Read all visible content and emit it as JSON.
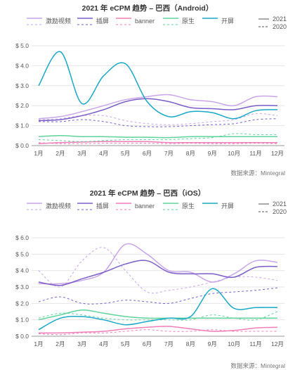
{
  "source_text": "数据来源：Mintegral",
  "chart_data": [
    {
      "type": "line",
      "title": "2021 年 eCPM 趋势 – 巴西（Android）",
      "xlabel": "",
      "ylabel": "",
      "categories": [
        "1月",
        "2月",
        "3月",
        "4月",
        "5月",
        "6月",
        "7月",
        "8月",
        "9月",
        "10月",
        "11月",
        "12月"
      ],
      "yticks": [
        "$ 0.0",
        "$ 1.0",
        "$ 2.0",
        "$ 3.0",
        "$ 4.0",
        "$ 5.0"
      ],
      "ylim": [
        0,
        5
      ],
      "grid": true,
      "legend_position": "top",
      "year_legend": [
        "2021",
        "2020"
      ],
      "series": [
        {
          "name": "激励视频",
          "color": "#c9a6e8",
          "year": "2021",
          "values": [
            1.35,
            1.45,
            1.7,
            2.0,
            2.3,
            2.45,
            2.55,
            2.3,
            2.2,
            2.0,
            2.45,
            2.45
          ]
        },
        {
          "name": "激励视频",
          "color": "#c9a6e8",
          "year": "2020",
          "values": [
            1.3,
            1.35,
            1.5,
            1.5,
            1.25,
            1.1,
            1.05,
            1.1,
            1.2,
            1.3,
            1.6,
            1.5
          ]
        },
        {
          "name": "插屏",
          "color": "#7b5fc7",
          "year": "2021",
          "values": [
            1.25,
            1.3,
            1.5,
            1.8,
            2.2,
            2.35,
            2.2,
            1.9,
            1.85,
            1.8,
            2.0,
            2.0
          ]
        },
        {
          "name": "插屏",
          "color": "#7b5fc7",
          "year": "2020",
          "values": [
            1.2,
            1.2,
            1.3,
            1.2,
            1.0,
            0.95,
            0.95,
            1.0,
            1.05,
            1.1,
            1.3,
            1.35
          ]
        },
        {
          "name": "banner",
          "color": "#ef7fb8",
          "year": "2021",
          "values": [
            0.1,
            0.15,
            0.18,
            0.2,
            0.2,
            0.2,
            0.15,
            0.15,
            0.15,
            0.15,
            0.15,
            0.15
          ]
        },
        {
          "name": "banner",
          "color": "#ef7fb8",
          "year": "2020",
          "values": [
            0.15,
            0.1,
            0.1,
            0.12,
            0.12,
            0.12,
            0.1,
            0.12,
            0.1,
            0.1,
            0.12,
            0.1
          ]
        },
        {
          "name": "原生",
          "color": "#5fd39b",
          "year": "2021",
          "values": [
            0.45,
            0.5,
            0.45,
            0.45,
            0.42,
            0.42,
            0.4,
            0.45,
            0.45,
            0.45,
            0.45,
            0.45
          ]
        },
        {
          "name": "原生",
          "color": "#5fd39b",
          "year": "2020",
          "values": [
            0.3,
            0.25,
            0.2,
            0.25,
            0.3,
            0.3,
            0.3,
            0.35,
            0.4,
            0.6,
            0.55,
            0.55
          ]
        },
        {
          "name": "开屏",
          "color": "#19a8c6",
          "year": "2021",
          "values": [
            3.0,
            4.7,
            2.1,
            3.5,
            4.1,
            2.2,
            1.45,
            1.7,
            1.65,
            1.35,
            1.75,
            1.8
          ]
        }
      ]
    },
    {
      "type": "line",
      "title": "2021 年 eCPM 趋势 – 巴西（iOS）",
      "xlabel": "",
      "ylabel": "",
      "categories": [
        "1月",
        "2月",
        "3月",
        "4月",
        "5月",
        "6月",
        "7月",
        "8月",
        "9月",
        "10月",
        "11月",
        "12月"
      ],
      "yticks": [
        "$ 0.0",
        "$ 1.0",
        "$ 2.0",
        "$ 3.0",
        "$ 4.0",
        "$ 5.0",
        "$ 6.0"
      ],
      "ylim": [
        0,
        6
      ],
      "grid": true,
      "legend_position": "top",
      "year_legend": [
        "2021",
        "2020"
      ],
      "series": [
        {
          "name": "激励视频",
          "color": "#c9a6e8",
          "year": "2021",
          "values": [
            3.2,
            3.2,
            3.4,
            3.9,
            5.6,
            5.0,
            4.0,
            3.9,
            3.3,
            3.8,
            4.6,
            4.5
          ]
        },
        {
          "name": "激励视频",
          "color": "#c9a6e8",
          "year": "2020",
          "values": [
            4.0,
            3.0,
            4.6,
            5.4,
            4.0,
            2.7,
            2.8,
            3.0,
            3.3,
            3.6,
            3.6,
            3.4
          ]
        },
        {
          "name": "插屏",
          "color": "#7b5fc7",
          "year": "2021",
          "values": [
            3.3,
            3.1,
            3.5,
            3.9,
            4.4,
            4.6,
            3.9,
            3.8,
            3.8,
            3.6,
            4.2,
            4.25
          ]
        },
        {
          "name": "插屏",
          "color": "#7b5fc7",
          "year": "2020",
          "values": [
            2.1,
            2.4,
            2.0,
            2.0,
            2.2,
            2.1,
            2.0,
            2.3,
            2.6,
            2.7,
            2.8,
            2.95
          ]
        },
        {
          "name": "banner",
          "color": "#ef7fb8",
          "year": "2021",
          "values": [
            0.2,
            0.2,
            0.25,
            0.3,
            0.45,
            0.55,
            0.6,
            0.45,
            0.3,
            0.35,
            0.5,
            0.55
          ]
        },
        {
          "name": "banner",
          "color": "#ef7fb8",
          "year": "2020",
          "values": [
            0.15,
            0.1,
            0.2,
            0.2,
            0.3,
            0.4,
            0.3,
            0.3,
            0.4,
            0.3,
            0.3,
            0.3
          ]
        },
        {
          "name": "原生",
          "color": "#5fd39b",
          "year": "2021",
          "values": [
            1.0,
            1.3,
            1.6,
            1.4,
            1.2,
            1.1,
            1.1,
            1.1,
            1.1,
            1.1,
            1.1,
            1.1
          ]
        },
        {
          "name": "原生",
          "color": "#5fd39b",
          "year": "2020",
          "values": [
            1.1,
            1.4,
            1.3,
            1.1,
            1.0,
            1.0,
            1.0,
            1.0,
            1.3,
            1.1,
            1.0,
            1.5
          ]
        },
        {
          "name": "开屏",
          "color": "#19a8c6",
          "year": "2021",
          "values": [
            0.4,
            1.1,
            1.2,
            1.0,
            0.7,
            0.9,
            1.1,
            1.2,
            2.9,
            1.7,
            1.75,
            1.75
          ]
        }
      ]
    }
  ]
}
